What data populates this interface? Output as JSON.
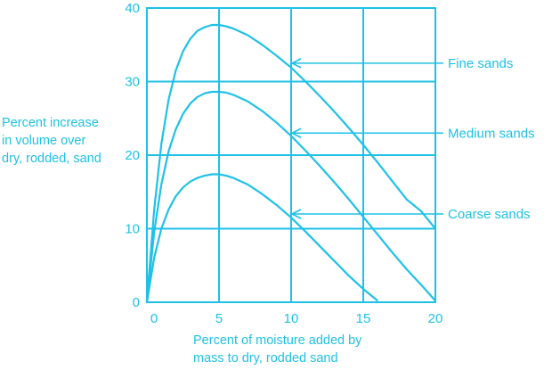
{
  "colors": {
    "line": "#1fc1e6",
    "grid": "#1fc1e6",
    "text": "#1fc1e6",
    "background": "#ffffff"
  },
  "chart_data": {
    "type": "line",
    "title": "",
    "ylabel_lines": [
      "Percent increase",
      "in volume over",
      "dry, rodded, sand"
    ],
    "xlabel_lines": [
      "Percent of moisture added by",
      "mass to dry, rodded sand"
    ],
    "xlim": [
      0,
      20
    ],
    "ylim": [
      0,
      40
    ],
    "grid": true,
    "x_ticks": [
      0,
      5,
      10,
      15,
      20
    ],
    "x_tick_labels": [
      "0",
      "5",
      "10",
      "15",
      "20"
    ],
    "y_ticks": [
      0,
      10,
      20,
      30,
      40
    ],
    "y_tick_labels": [
      "0",
      "10",
      "20",
      "30",
      "40"
    ],
    "series": [
      {
        "name": "Fine sands",
        "x": [
          0,
          0.5,
          1,
          1.5,
          2,
          2.5,
          3,
          3.5,
          4,
          4.5,
          5,
          5.5,
          6,
          7,
          8,
          9,
          10,
          11,
          12,
          13,
          14,
          15,
          16,
          17,
          18,
          19,
          20
        ],
        "y": [
          0,
          12.5,
          21.5,
          27.5,
          31.5,
          34.1,
          35.8,
          36.9,
          37.4,
          37.7,
          37.7,
          37.5,
          37.2,
          36.3,
          35.0,
          33.5,
          31.9,
          30.0,
          28.0,
          25.9,
          23.7,
          21.4,
          19.0,
          16.5,
          14.0,
          12.4,
          10.0
        ]
      },
      {
        "name": "Medium sands",
        "x": [
          0,
          0.5,
          1,
          1.5,
          2,
          2.5,
          3,
          3.5,
          4,
          4.5,
          5,
          5.5,
          6,
          7,
          8,
          9,
          10,
          11,
          12,
          13,
          14,
          15,
          16,
          17,
          18,
          19,
          20
        ],
        "y": [
          0,
          9.5,
          16.0,
          20.5,
          23.5,
          25.6,
          27.0,
          27.9,
          28.4,
          28.6,
          28.6,
          28.5,
          28.2,
          27.3,
          26.0,
          24.4,
          22.6,
          20.6,
          18.5,
          16.3,
          14.0,
          11.6,
          9.2,
          6.8,
          4.5,
          2.4,
          0.2
        ]
      },
      {
        "name": "Coarse sands",
        "x": [
          0,
          0.5,
          1,
          1.5,
          2,
          2.5,
          3,
          3.5,
          4,
          4.5,
          5,
          5.5,
          6,
          7,
          8,
          9,
          10,
          11,
          12,
          13,
          14,
          15,
          16
        ],
        "y": [
          0,
          6.0,
          10.0,
          12.6,
          14.4,
          15.6,
          16.4,
          16.9,
          17.2,
          17.4,
          17.4,
          17.2,
          16.9,
          16.0,
          14.7,
          13.2,
          11.5,
          9.6,
          7.6,
          5.6,
          3.6,
          1.8,
          0.2
        ]
      }
    ],
    "annotations": [
      {
        "text": "Fine sands",
        "x": 10,
        "y": 32.5
      },
      {
        "text": "Medium sands",
        "x": 10,
        "y": 23
      },
      {
        "text": "Coarse sands",
        "x": 10,
        "y": 12
      }
    ]
  }
}
